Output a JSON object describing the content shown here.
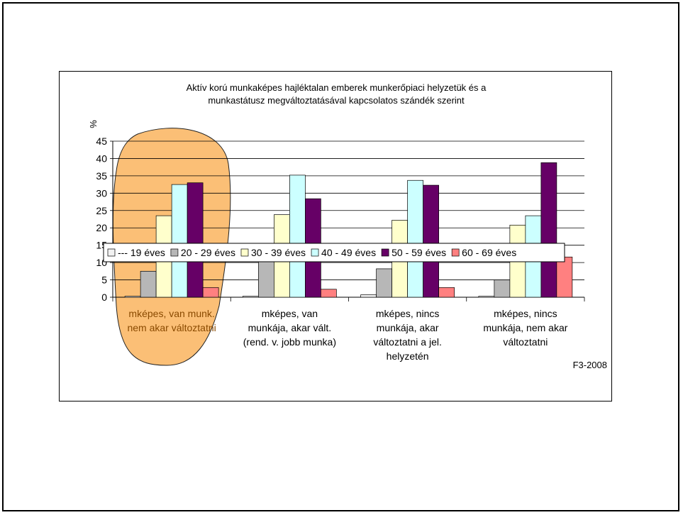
{
  "chart_data": {
    "type": "bar",
    "title_lines": [
      "Aktív korú munkaképes hajléktalan emberek munkerőpiaci helyzetük és a",
      "munkastátusz megváltoztatásával kapcsolatos szándék szerint"
    ],
    "ylabel": "%",
    "ylim": [
      0,
      45
    ],
    "yticks": [
      0,
      5,
      10,
      15,
      20,
      25,
      30,
      35,
      40,
      45
    ],
    "grid": true,
    "legend_position": "middle",
    "categories": [
      [
        "mképes, van munk.",
        "nem akar változtatni"
      ],
      [
        "mképes, van",
        "munkája, akar vált.",
        "(rend. v. jobb munka)"
      ],
      [
        "mképes, nincs",
        "munkája, akar",
        "változtatni a jel.",
        "helyzetén"
      ],
      [
        "mképes, nincs",
        "munkája, nem akar",
        "változtatni"
      ]
    ],
    "series": [
      {
        "name": "---  19 éves",
        "color": "#f2f2f2",
        "values": [
          0.3,
          0.3,
          0.7,
          0.3
        ]
      },
      {
        "name": "20 - 29 éves",
        "color": "#b7b7b7",
        "values": [
          7.5,
          12.0,
          8.2,
          5.0
        ]
      },
      {
        "name": "30 - 39 éves",
        "color": "#ffffcc",
        "values": [
          23.5,
          23.8,
          22.2,
          20.8
        ]
      },
      {
        "name": "40 - 49 éves",
        "color": "#ccffff",
        "values": [
          32.5,
          35.2,
          33.7,
          23.5
        ]
      },
      {
        "name": "50 - 59 éves",
        "color": "#660066",
        "values": [
          33.0,
          28.4,
          32.3,
          38.8
        ]
      },
      {
        "name": "60 - 69 éves",
        "color": "#ff8080",
        "values": [
          2.8,
          2.3,
          2.8,
          11.6
        ]
      }
    ],
    "highlight": {
      "color": "#fbbf76",
      "outline": "#222222"
    },
    "source_note": "F3-2008"
  }
}
